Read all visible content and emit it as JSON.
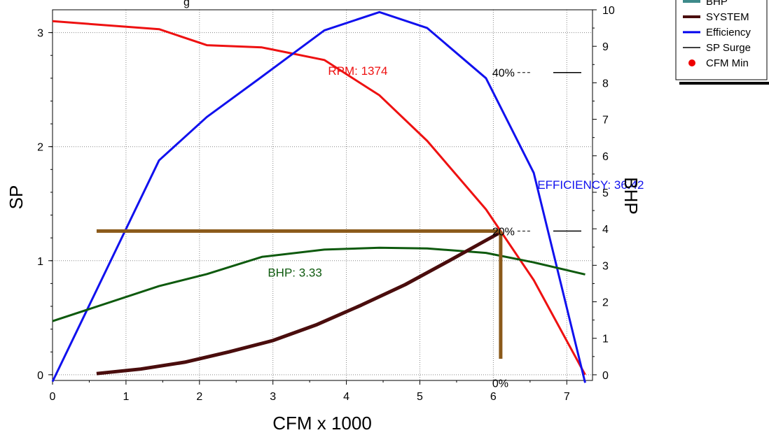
{
  "chart_data": {
    "type": "line",
    "xlabel": "CFM x 1000",
    "ylabel": "SP",
    "y2label": "BHP",
    "xlim": [
      0,
      7.35
    ],
    "ylim": [
      -0.05,
      3.2
    ],
    "y2lim": [
      -0.155,
      10.0
    ],
    "x_ticks": [
      "0",
      "1",
      "2",
      "3",
      "4",
      "5",
      "6",
      "7"
    ],
    "y_ticks": [
      "0",
      "1",
      "2",
      "3"
    ],
    "y2_ticks": [
      "0",
      "1",
      "2",
      "3",
      "4",
      "5",
      "6",
      "7",
      "8",
      "9",
      "10"
    ],
    "grid": true,
    "legend": {
      "position": "top-right",
      "items": [
        {
          "label": "BHP",
          "color": "#3d8a8a",
          "marker": "line"
        },
        {
          "label": "SYSTEM",
          "color": "#4a0d0d",
          "marker": "line"
        },
        {
          "label": "Efficiency",
          "color": "#0000ee",
          "marker": "line"
        },
        {
          "label": "SP Surge",
          "color": "#000000",
          "marker": "line"
        },
        {
          "label": "CFM Min",
          "color": "#ee0000",
          "marker": "dot"
        }
      ]
    },
    "series": [
      {
        "name": "RPM",
        "color": "#ee1111",
        "axis": "left",
        "width": 3,
        "points": [
          [
            0,
            3.1
          ],
          [
            1.45,
            3.03
          ],
          [
            2.1,
            2.89
          ],
          [
            2.85,
            2.87
          ],
          [
            3.7,
            2.76
          ],
          [
            4.45,
            2.45
          ],
          [
            5.1,
            2.05
          ],
          [
            5.9,
            1.45
          ],
          [
            6.55,
            0.83
          ],
          [
            7.25,
            0.0
          ]
        ]
      },
      {
        "name": "Efficiency",
        "color": "#1111ee",
        "axis": "left",
        "width": 3,
        "points": [
          [
            0,
            -0.06
          ],
          [
            1.45,
            1.88
          ],
          [
            2.1,
            2.26
          ],
          [
            2.8,
            2.59
          ],
          [
            3.7,
            3.02
          ],
          [
            4.45,
            3.18
          ],
          [
            5.1,
            3.04
          ],
          [
            5.9,
            2.6
          ],
          [
            6.55,
            1.77
          ],
          [
            7.25,
            -0.07
          ]
        ]
      },
      {
        "name": "BHP",
        "color": "#0e5a0e",
        "axis": "right",
        "width": 3,
        "points": [
          [
            0,
            1.47
          ],
          [
            1.45,
            2.43
          ],
          [
            2.1,
            2.76
          ],
          [
            2.85,
            3.23
          ],
          [
            3.7,
            3.43
          ],
          [
            4.45,
            3.48
          ],
          [
            5.1,
            3.46
          ],
          [
            5.9,
            3.34
          ],
          [
            6.55,
            3.08
          ],
          [
            7.25,
            2.75
          ]
        ]
      },
      {
        "name": "SYSTEM",
        "color": "#4a0d0d",
        "axis": "left",
        "width": 5,
        "points": [
          [
            0.6,
            0.01
          ],
          [
            1.2,
            0.05
          ],
          [
            1.8,
            0.11
          ],
          [
            2.4,
            0.2
          ],
          [
            3.0,
            0.3
          ],
          [
            3.6,
            0.44
          ],
          [
            4.2,
            0.61
          ],
          [
            4.8,
            0.79
          ],
          [
            5.4,
            1.0
          ],
          [
            6.1,
            1.25
          ]
        ]
      }
    ],
    "operating_point": {
      "x": 6.1,
      "sp": 1.26,
      "sp_floor": 0.14,
      "x_start": 0.6,
      "color": "#8b5a1a"
    },
    "sp_surge_marks": [
      {
        "y": 2.65
      },
      {
        "y": 1.26
      }
    ],
    "efficiency_labels": [
      {
        "text": "40%",
        "x": 6.1,
        "y": 2.65
      },
      {
        "text": "20%",
        "x": 6.1,
        "y": 1.26
      },
      {
        "text": "0%",
        "x": 6.1,
        "y": -0.07
      }
    ],
    "annotations": [
      {
        "text": "RPM: 1374",
        "x": 3.75,
        "y": 2.63,
        "color": "#ee1111"
      },
      {
        "text": "EFFICIENCY: 36.42",
        "x": 6.6,
        "y": 1.63,
        "color": "#1111ee"
      },
      {
        "text": "BHP: 3.33",
        "x": 2.93,
        "y": 0.86,
        "color": "#0e5a0e"
      }
    ],
    "title_fragment": "g"
  }
}
